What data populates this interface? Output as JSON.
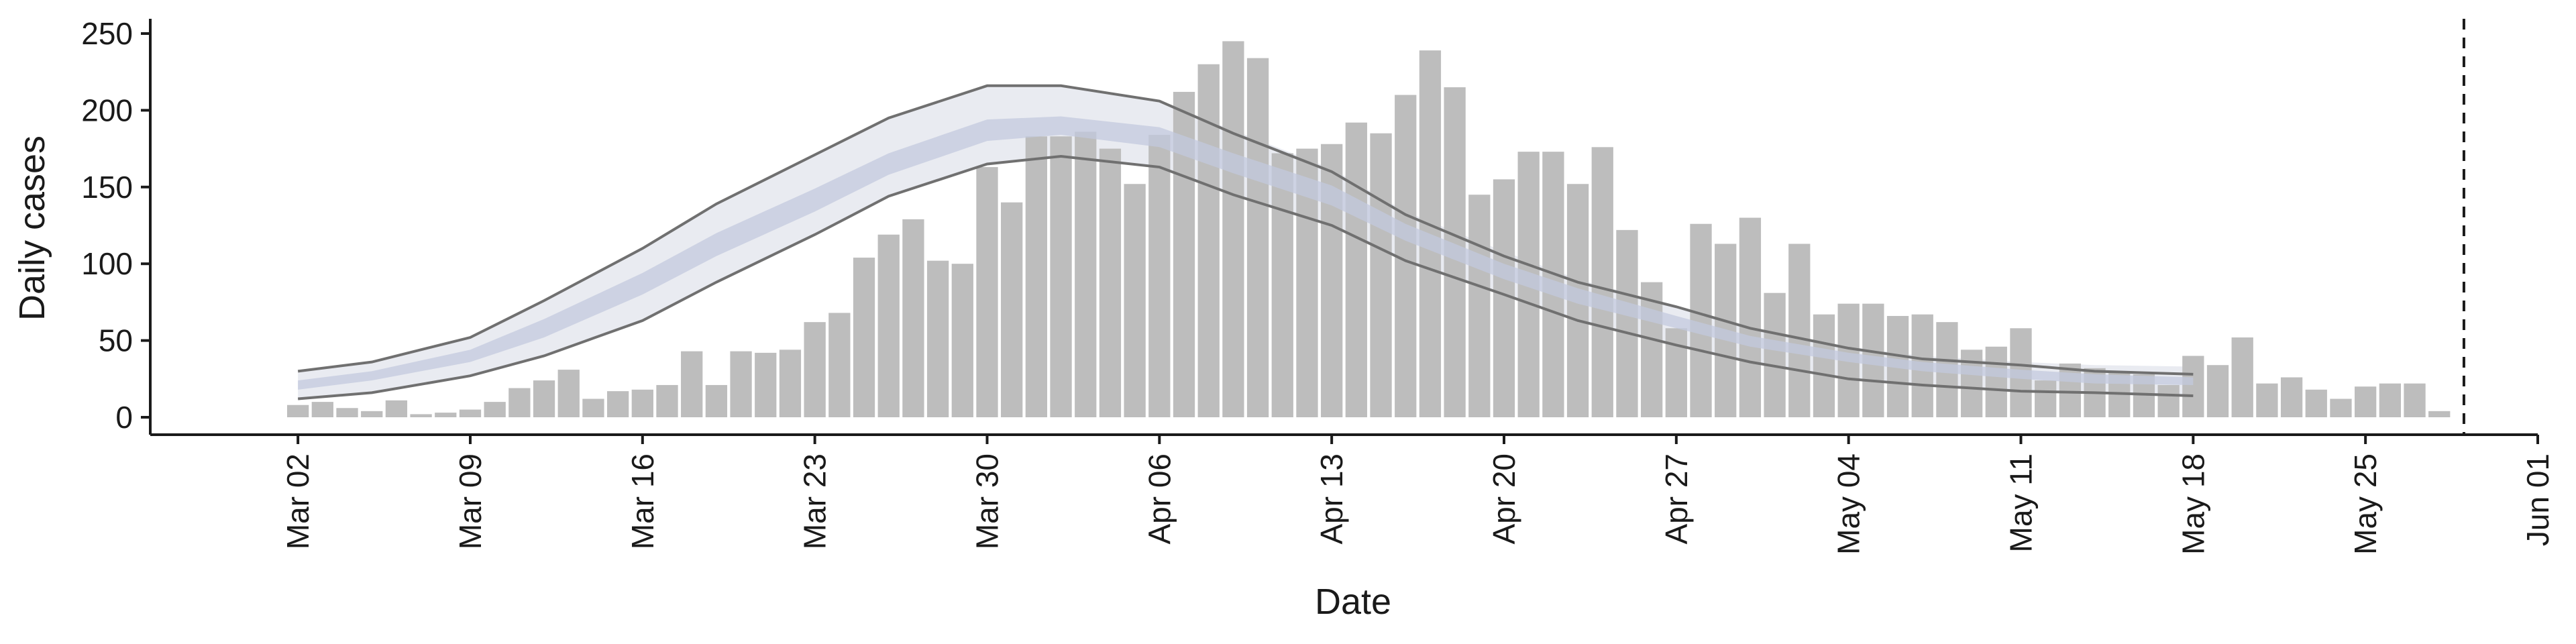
{
  "chart_data": {
    "type": "bar",
    "title": "",
    "xlabel": "Date",
    "ylabel": "Daily cases",
    "ylim": [
      0,
      260
    ],
    "xlim": [
      "2020-02-25",
      "2020-06-01"
    ],
    "y_ticks": [
      0,
      50,
      100,
      150,
      200,
      250
    ],
    "x_ticks": [
      {
        "date": "2020-03-02",
        "label": "Mar 02"
      },
      {
        "date": "2020-03-09",
        "label": "Mar 09"
      },
      {
        "date": "2020-03-16",
        "label": "Mar 16"
      },
      {
        "date": "2020-03-23",
        "label": "Mar 23"
      },
      {
        "date": "2020-03-30",
        "label": "Mar 30"
      },
      {
        "date": "2020-04-06",
        "label": "Apr 06"
      },
      {
        "date": "2020-04-13",
        "label": "Apr 13"
      },
      {
        "date": "2020-04-20",
        "label": "Apr 20"
      },
      {
        "date": "2020-04-27",
        "label": "Apr 27"
      },
      {
        "date": "2020-05-04",
        "label": "May 04"
      },
      {
        "date": "2020-05-11",
        "label": "May 11"
      },
      {
        "date": "2020-05-18",
        "label": "May 18"
      },
      {
        "date": "2020-05-25",
        "label": "May 25"
      },
      {
        "date": "2020-06-01",
        "label": "Jun 01"
      }
    ],
    "grid": false,
    "colors": {
      "bars": "#bdbdbd",
      "band_outer": "#e5e7ef",
      "band_inner": "#c3cadd",
      "lines": "#707070",
      "vline": "#1a1a1a",
      "axis": "#1a1a1a"
    },
    "reference_line": {
      "date": "2020-05-29",
      "style": "dashed"
    },
    "bars": {
      "name": "Reported cases",
      "x": [
        "2020-03-02",
        "2020-03-03",
        "2020-03-04",
        "2020-03-05",
        "2020-03-06",
        "2020-03-07",
        "2020-03-08",
        "2020-03-09",
        "2020-03-10",
        "2020-03-11",
        "2020-03-12",
        "2020-03-13",
        "2020-03-14",
        "2020-03-15",
        "2020-03-16",
        "2020-03-17",
        "2020-03-18",
        "2020-03-19",
        "2020-03-20",
        "2020-03-21",
        "2020-03-22",
        "2020-03-23",
        "2020-03-24",
        "2020-03-25",
        "2020-03-26",
        "2020-03-27",
        "2020-03-28",
        "2020-03-29",
        "2020-03-30",
        "2020-03-31",
        "2020-04-01",
        "2020-04-02",
        "2020-04-03",
        "2020-04-04",
        "2020-04-05",
        "2020-04-06",
        "2020-04-07",
        "2020-04-08",
        "2020-04-09",
        "2020-04-10",
        "2020-04-11",
        "2020-04-12",
        "2020-04-13",
        "2020-04-14",
        "2020-04-15",
        "2020-04-16",
        "2020-04-17",
        "2020-04-18",
        "2020-04-19",
        "2020-04-20",
        "2020-04-21",
        "2020-04-22",
        "2020-04-23",
        "2020-04-24",
        "2020-04-25",
        "2020-04-26",
        "2020-04-27",
        "2020-04-28",
        "2020-04-29",
        "2020-04-30",
        "2020-05-01",
        "2020-05-02",
        "2020-05-03",
        "2020-05-04",
        "2020-05-05",
        "2020-05-06",
        "2020-05-07",
        "2020-05-08",
        "2020-05-09",
        "2020-05-10",
        "2020-05-11",
        "2020-05-12",
        "2020-05-13",
        "2020-05-14",
        "2020-05-15",
        "2020-05-16",
        "2020-05-17",
        "2020-05-18",
        "2020-05-19",
        "2020-05-20",
        "2020-05-21",
        "2020-05-22",
        "2020-05-23",
        "2020-05-24",
        "2020-05-25",
        "2020-05-26",
        "2020-05-27",
        "2020-05-28"
      ],
      "values": [
        8,
        10,
        6,
        4,
        11,
        2,
        3,
        5,
        10,
        19,
        24,
        31,
        12,
        17,
        18,
        21,
        43,
        21,
        43,
        42,
        44,
        62,
        68,
        104,
        119,
        129,
        102,
        100,
        163,
        140,
        183,
        183,
        186,
        175,
        152,
        184,
        212,
        230,
        245,
        234,
        172,
        175,
        178,
        192,
        185,
        210,
        239,
        215,
        145,
        155,
        173,
        173,
        152,
        176,
        122,
        88,
        58,
        126,
        113,
        130,
        81,
        113,
        67,
        74,
        74,
        66,
        67,
        62,
        44,
        46,
        58,
        24,
        35,
        32,
        29,
        28,
        21,
        40,
        34,
        52,
        22,
        26,
        18,
        12,
        20,
        22,
        22,
        4
      ]
    },
    "bands": {
      "x": [
        "2020-03-02",
        "2020-03-05",
        "2020-03-09",
        "2020-03-12",
        "2020-03-16",
        "2020-03-19",
        "2020-03-23",
        "2020-03-26",
        "2020-03-30",
        "2020-04-02",
        "2020-04-06",
        "2020-04-09",
        "2020-04-13",
        "2020-04-16",
        "2020-04-20",
        "2020-04-23",
        "2020-04-27",
        "2020-04-30",
        "2020-05-04",
        "2020-05-07",
        "2020-05-11",
        "2020-05-14",
        "2020-05-18"
      ],
      "outer_upper": [
        30,
        36,
        52,
        76,
        110,
        139,
        171,
        195,
        216,
        216,
        206,
        187,
        162,
        134,
        108,
        90,
        72,
        58,
        46,
        40,
        36,
        34,
        33
      ],
      "upper_line": [
        30,
        36,
        52,
        76,
        110,
        139,
        171,
        195,
        216,
        216,
        206,
        185,
        160,
        132,
        105,
        88,
        72,
        58,
        45,
        38,
        34,
        30,
        28
      ],
      "inner_upper": [
        24,
        30,
        44,
        64,
        94,
        120,
        149,
        172,
        194,
        196,
        189,
        172,
        151,
        126,
        100,
        84,
        66,
        53,
        42,
        36,
        31,
        28,
        26
      ],
      "median": [
        21,
        27,
        40,
        58,
        87,
        113,
        142,
        165,
        188,
        190,
        182,
        166,
        144,
        121,
        95,
        79,
        62,
        50,
        39,
        33,
        28,
        25,
        23
      ],
      "inner_lower": [
        18,
        24,
        36,
        52,
        80,
        105,
        134,
        158,
        180,
        184,
        176,
        159,
        138,
        115,
        90,
        74,
        58,
        46,
        36,
        30,
        25,
        22,
        21
      ],
      "lower_line": [
        12,
        16,
        27,
        40,
        63,
        88,
        119,
        144,
        165,
        170,
        163,
        145,
        125,
        102,
        80,
        63,
        47,
        36,
        25,
        21,
        17,
        16,
        14
      ],
      "outer_lower": [
        12,
        16,
        27,
        40,
        63,
        88,
        119,
        144,
        165,
        170,
        163,
        145,
        125,
        102,
        80,
        63,
        47,
        36,
        25,
        21,
        17,
        16,
        14
      ]
    }
  }
}
